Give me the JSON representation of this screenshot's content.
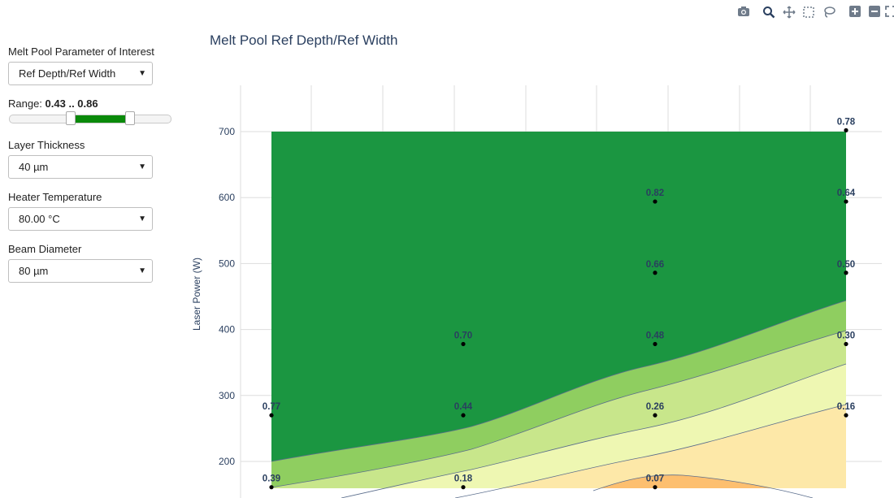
{
  "sidebar": {
    "parameter_label": "Melt Pool Parameter of Interest",
    "parameter_value": "Ref Depth/Ref Width",
    "range_prefix": "Range: ",
    "range_value": "0.43 .. 0.86",
    "range_min": 0.43,
    "range_max": 0.86,
    "layer_label": "Layer Thickness",
    "layer_value": "40 µm",
    "heater_label": "Heater Temperature",
    "heater_value": "80.00 °C",
    "beam_label": "Beam Diameter",
    "beam_value": "80 µm"
  },
  "toolbar": {
    "icons": [
      "camera-icon",
      "zoom-icon",
      "pan-icon",
      "box-select-icon",
      "lasso-icon",
      "zoom-in-icon",
      "zoom-out-icon",
      "autoscale-icon"
    ]
  },
  "chart_data": {
    "type": "contour",
    "title": "Melt Pool Ref Depth/Ref Width",
    "xlabel": "",
    "ylabel": "Laser Power (W)",
    "yticks": [
      200,
      300,
      400,
      500,
      600,
      700
    ],
    "ylim": [
      145,
      770
    ],
    "grid": true,
    "colors": {
      "band_high": "#1b9641",
      "band_2": "#8fce60",
      "band_3": "#c8e68b",
      "band_4": "#eef7b2",
      "band_5": "#fde8a8",
      "band_low": "#fdbf6f",
      "contour_line": "#5a6d8c",
      "label": "#2a3f5f",
      "grid": "#dddddd"
    },
    "contour_levels": [
      0.1,
      0.2,
      0.3,
      0.4,
      0.5
    ],
    "points": [
      {
        "col": 0,
        "y": 270,
        "value": "0.77"
      },
      {
        "col": 0,
        "y": 161,
        "value": "0.39"
      },
      {
        "col": 1,
        "y": 378,
        "value": "0.70"
      },
      {
        "col": 1,
        "y": 270,
        "value": "0.44"
      },
      {
        "col": 1,
        "y": 161,
        "value": "0.18"
      },
      {
        "col": 2,
        "y": 594,
        "value": "0.82"
      },
      {
        "col": 2,
        "y": 486,
        "value": "0.66"
      },
      {
        "col": 2,
        "y": 378,
        "value": "0.48"
      },
      {
        "col": 2,
        "y": 270,
        "value": "0.26"
      },
      {
        "col": 2,
        "y": 161,
        "value": "0.07"
      },
      {
        "col": 3,
        "y": 702,
        "value": "0.78"
      },
      {
        "col": 3,
        "y": 594,
        "value": "0.64"
      },
      {
        "col": 3,
        "y": 486,
        "value": "0.50"
      },
      {
        "col": 3,
        "y": 378,
        "value": "0.30"
      },
      {
        "col": 3,
        "y": 270,
        "value": "0.16"
      }
    ]
  }
}
